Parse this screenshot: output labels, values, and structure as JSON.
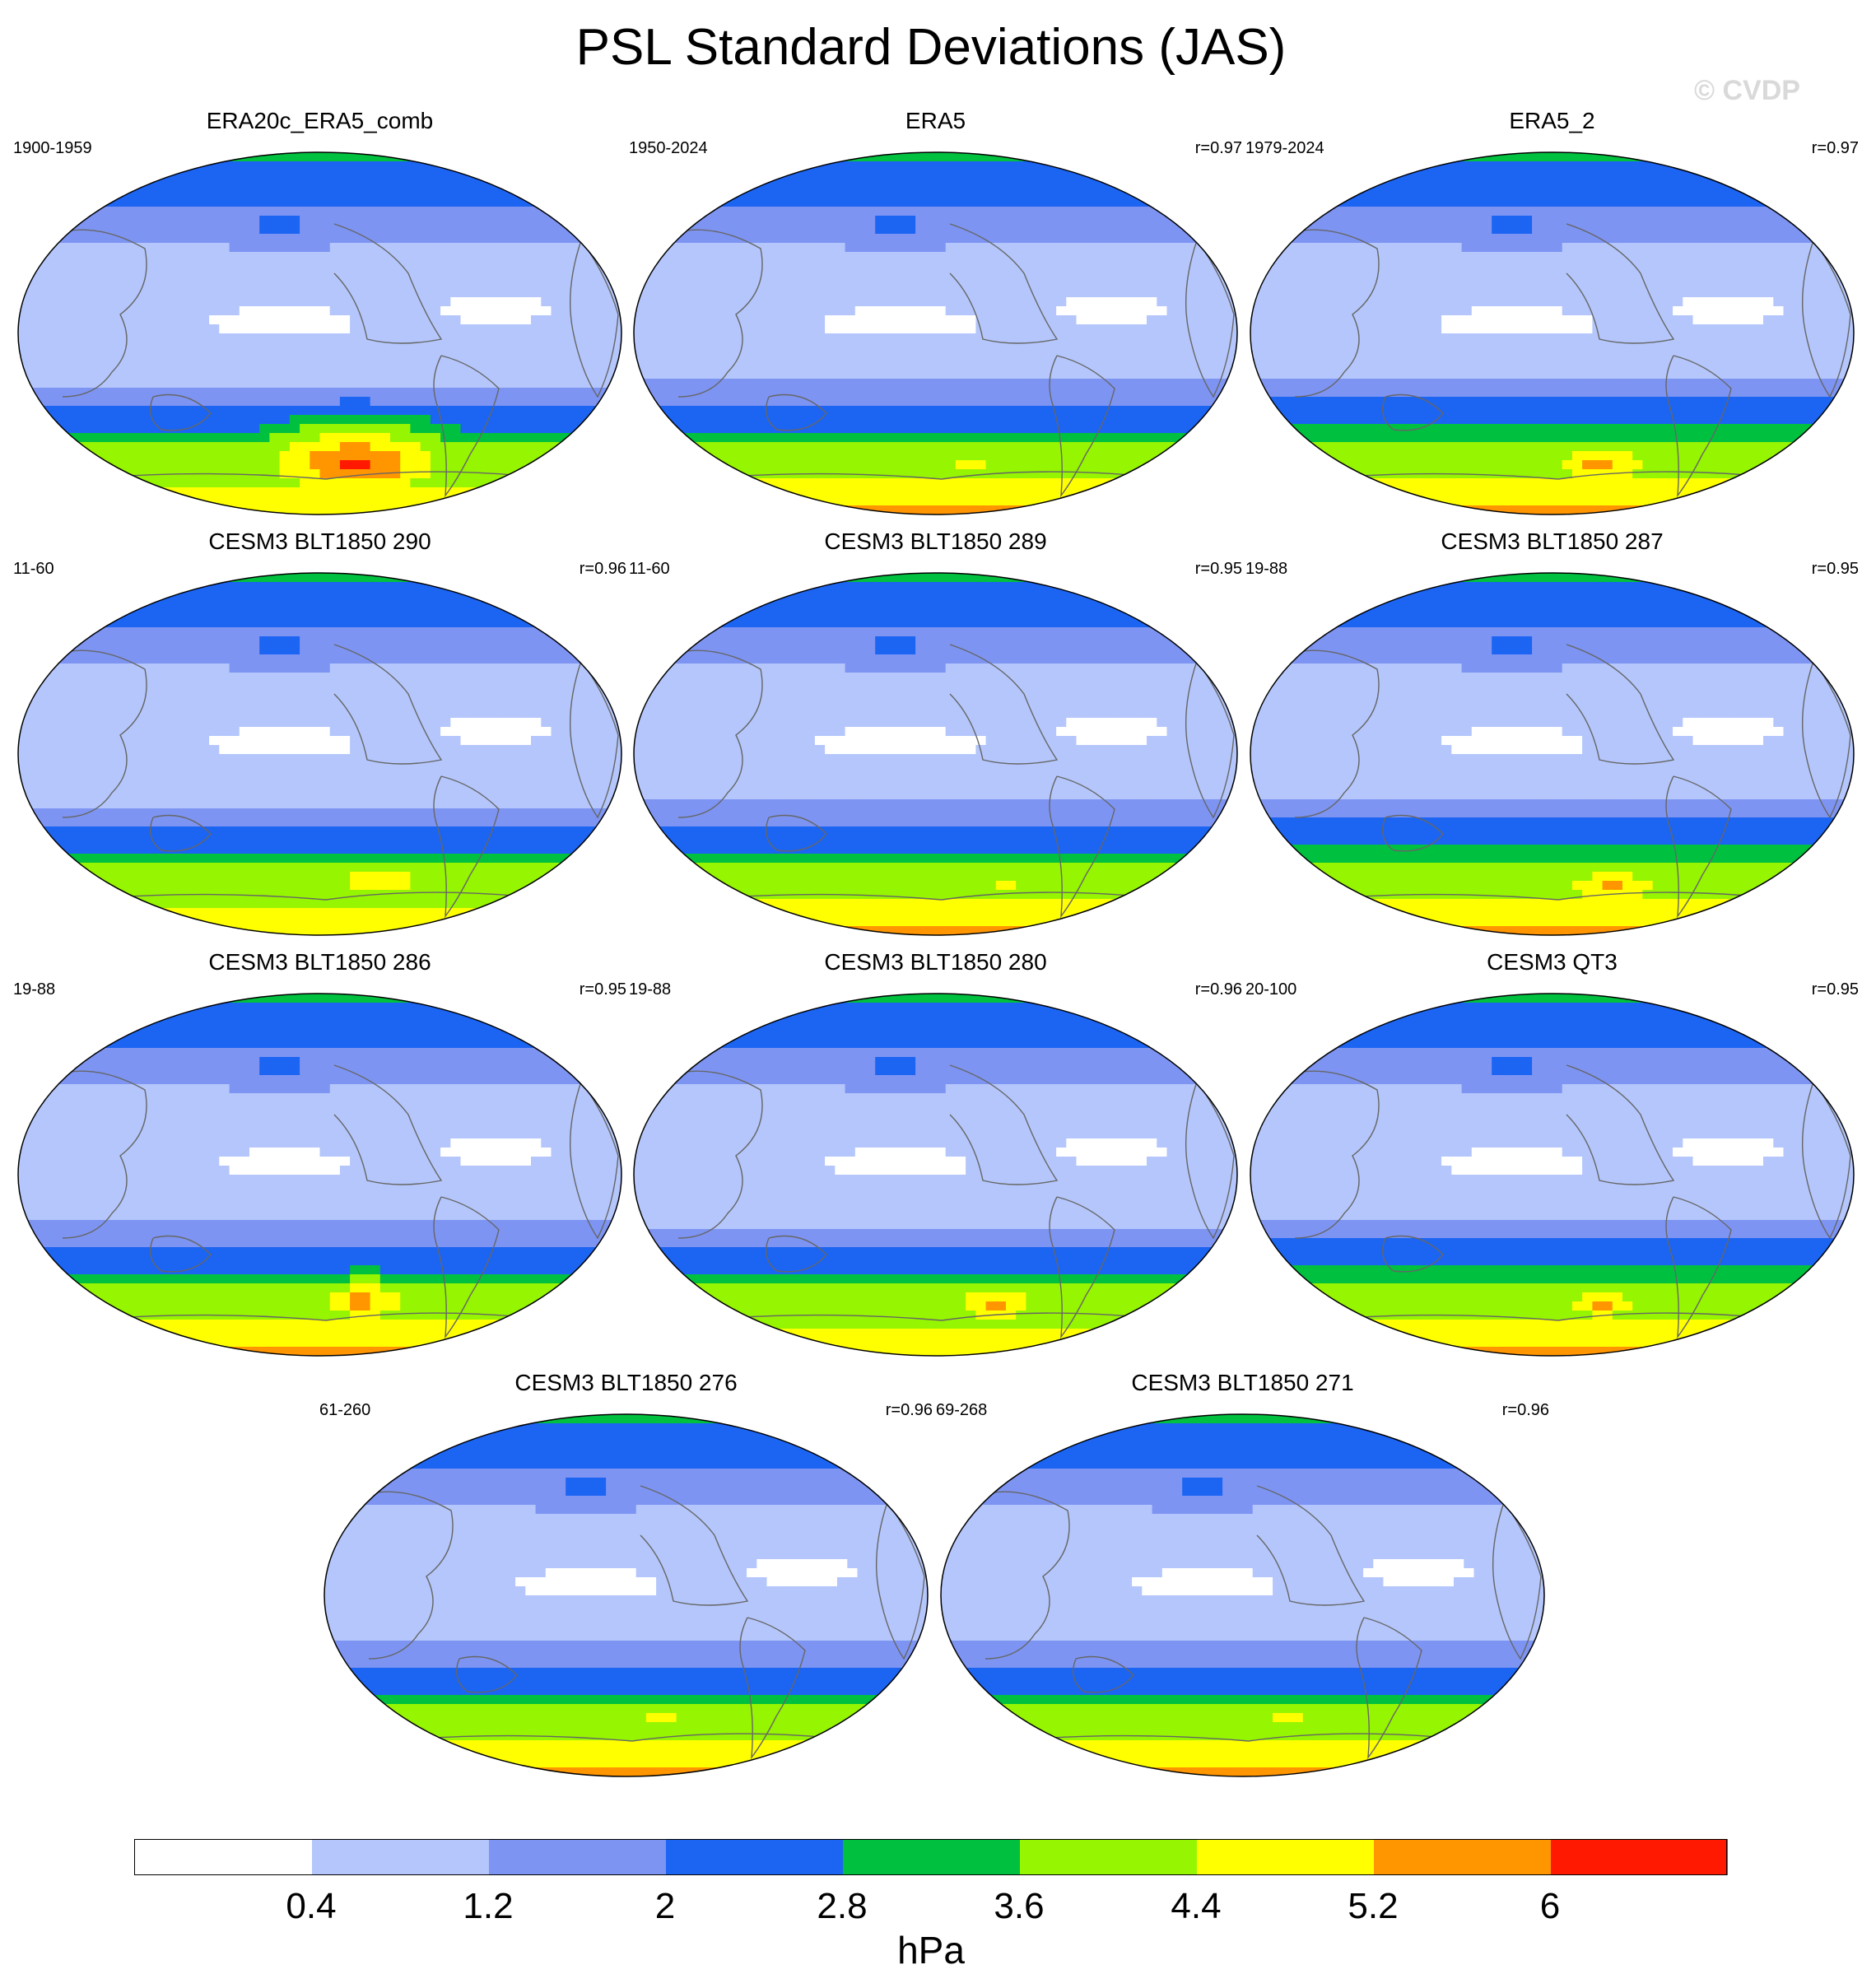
{
  "title": "PSL Standard Deviations (JAS)",
  "watermark": "© CVDP",
  "panels": [
    {
      "title": "ERA20c_ERA5_comb",
      "left": "1900-1959",
      "right": ""
    },
    {
      "title": "ERA5",
      "left": "1950-2024",
      "right": "r=0.97"
    },
    {
      "title": "ERA5_2",
      "left": "1979-2024",
      "right": "r=0.97"
    },
    {
      "title": "CESM3 BLT1850 290",
      "left": "11-60",
      "right": "r=0.96"
    },
    {
      "title": "CESM3 BLT1850 289",
      "left": "11-60",
      "right": "r=0.95"
    },
    {
      "title": "CESM3 BLT1850 287",
      "left": "19-88",
      "right": "r=0.95"
    },
    {
      "title": "CESM3 BLT1850 286",
      "left": "19-88",
      "right": "r=0.95"
    },
    {
      "title": "CESM3 BLT1850 280",
      "left": "19-88",
      "right": "r=0.96"
    },
    {
      "title": "CESM3 QT3",
      "left": "20-100",
      "right": "r=0.95"
    },
    {
      "title": "CESM3 BLT1850 276",
      "left": "61-260",
      "right": "r=0.96"
    },
    {
      "title": "CESM3 BLT1850 271",
      "left": "69-268",
      "right": "r=0.96"
    }
  ],
  "colorbar": {
    "levels": [
      "0.4",
      "1.2",
      "2",
      "2.8",
      "3.6",
      "4.4",
      "5.2",
      "6"
    ],
    "colors": [
      "#ffffff",
      "#b4c6fb",
      "#7d94f2",
      "#1c64f2",
      "#00c040",
      "#96f500",
      "#ffff00",
      "#ff9600",
      "#ff1900"
    ],
    "unit": "hPa"
  },
  "chart_data": {
    "type": "heatmap",
    "title": "PSL Standard Deviations (JAS)",
    "projection": "global (Robinson-like), Pacific-centred",
    "units": "hPa",
    "contour_levels": [
      0.4,
      1.2,
      2,
      2.8,
      3.6,
      4.4,
      5.2,
      6
    ],
    "panel_count": 11,
    "colorbar_label": "hPa"
  }
}
